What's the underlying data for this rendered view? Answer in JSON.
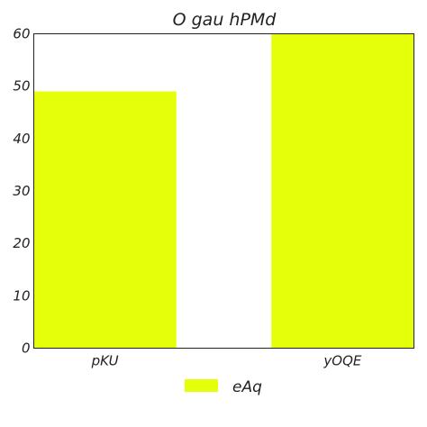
{
  "chart_data": {
    "type": "bar",
    "title": "O gau hPMd",
    "xlabel": "",
    "ylabel": "",
    "categories": [
      "pKU",
      "yOQE"
    ],
    "series": [
      {
        "name": "eAq",
        "values": [
          49,
          60
        ],
        "color": "#e5ff0a"
      }
    ],
    "ylim": [
      0,
      60
    ],
    "yticks": [
      0,
      10,
      20,
      30,
      40,
      50,
      60
    ],
    "grid": false,
    "legend": "bottom-center"
  }
}
